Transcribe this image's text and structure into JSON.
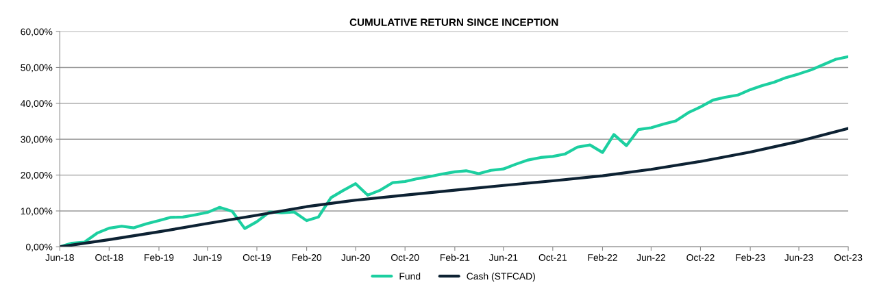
{
  "chart_data": {
    "type": "line",
    "title": "CUMULATIVE RETURN SINCE INCEPTION",
    "x": [
      "2018-06",
      "2018-07",
      "2018-08",
      "2018-09",
      "2018-10",
      "2018-11",
      "2018-12",
      "2019-01",
      "2019-02",
      "2019-03",
      "2019-04",
      "2019-05",
      "2019-06",
      "2019-07",
      "2019-08",
      "2019-09",
      "2019-10",
      "2019-11",
      "2019-12",
      "2020-01",
      "2020-02",
      "2020-03",
      "2020-04",
      "2020-05",
      "2020-06",
      "2020-07",
      "2020-08",
      "2020-09",
      "2020-10",
      "2020-11",
      "2020-12",
      "2021-01",
      "2021-02",
      "2021-03",
      "2021-04",
      "2021-05",
      "2021-06",
      "2021-07",
      "2021-08",
      "2021-09",
      "2021-10",
      "2021-11",
      "2021-12",
      "2022-01",
      "2022-02",
      "2022-03",
      "2022-04",
      "2022-05",
      "2022-06",
      "2022-07",
      "2022-08",
      "2022-09",
      "2022-10",
      "2022-11",
      "2022-12",
      "2023-01",
      "2023-02",
      "2023-03",
      "2023-04",
      "2023-05",
      "2023-06",
      "2023-07",
      "2023-08",
      "2023-09",
      "2023-10"
    ],
    "series": [
      {
        "name": "Fund",
        "color": "#1ccfa0",
        "values": [
          0,
          1.0,
          1.3,
          3.8,
          5.2,
          5.75,
          5.3,
          6.4,
          7.3,
          8.2,
          8.3,
          8.9,
          9.6,
          11.0,
          9.9,
          5.1,
          7.0,
          9.7,
          9.5,
          9.7,
          7.3,
          8.3,
          13.7,
          15.7,
          17.6,
          14.4,
          15.8,
          17.9,
          18.2,
          19.0,
          19.6,
          20.3,
          20.9,
          21.2,
          20.4,
          21.3,
          21.7,
          23.0,
          24.2,
          24.9,
          25.2,
          25.9,
          27.8,
          28.4,
          26.3,
          31.3,
          28.2,
          32.7,
          33.2,
          34.2,
          35.1,
          37.4,
          39.0,
          40.9,
          41.7,
          42.3,
          43.8,
          44.9,
          45.9,
          47.2,
          48.2,
          49.3,
          50.8,
          52.3,
          53.0
        ]
      },
      {
        "name": "Cash (STFCAD)",
        "color": "#0d2233",
        "x": [
          "2018-06",
          "2018-10",
          "2019-02",
          "2019-06",
          "2019-10",
          "2020-02",
          "2020-06",
          "2020-10",
          "2021-02",
          "2021-06",
          "2021-10",
          "2022-02",
          "2022-06",
          "2022-10",
          "2023-02",
          "2023-06",
          "2023-10"
        ],
        "values": [
          0,
          2.0,
          4.2,
          6.5,
          8.8,
          11.2,
          13.0,
          14.4,
          15.8,
          17.1,
          18.4,
          19.8,
          21.6,
          23.8,
          26.4,
          29.4,
          33.0
        ]
      }
    ],
    "xlim": [
      "2018-06",
      "2023-10"
    ],
    "xticks": [
      {
        "value": "2018-06",
        "label": "Jun-18"
      },
      {
        "value": "2018-10",
        "label": "Oct-18"
      },
      {
        "value": "2019-02",
        "label": "Feb-19"
      },
      {
        "value": "2019-06",
        "label": "Jun-19"
      },
      {
        "value": "2019-10",
        "label": "Oct-19"
      },
      {
        "value": "2020-02",
        "label": "Feb-20"
      },
      {
        "value": "2020-06",
        "label": "Jun-20"
      },
      {
        "value": "2020-10",
        "label": "Oct-20"
      },
      {
        "value": "2021-02",
        "label": "Feb-21"
      },
      {
        "value": "2021-06",
        "label": "Jun-21"
      },
      {
        "value": "2021-10",
        "label": "Oct-21"
      },
      {
        "value": "2022-02",
        "label": "Feb-22"
      },
      {
        "value": "2022-06",
        "label": "Jun-22"
      },
      {
        "value": "2022-10",
        "label": "Oct-22"
      },
      {
        "value": "2023-02",
        "label": "Feb-23"
      },
      {
        "value": "2023-06",
        "label": "Jun-23"
      },
      {
        "value": "2023-10",
        "label": "Oct-23"
      }
    ],
    "ylim": [
      0,
      60
    ],
    "yticks": [
      {
        "value": 0,
        "label": "0,00%"
      },
      {
        "value": 10,
        "label": "10,00%"
      },
      {
        "value": 20,
        "label": "20,00%"
      },
      {
        "value": 30,
        "label": "30,00%"
      },
      {
        "value": 40,
        "label": "40,00%"
      },
      {
        "value": 50,
        "label": "50,00%"
      },
      {
        "value": 60,
        "label": "60,00%"
      }
    ],
    "grid": "y",
    "legend": "bottom",
    "marker": "none",
    "line_style": "solid"
  }
}
